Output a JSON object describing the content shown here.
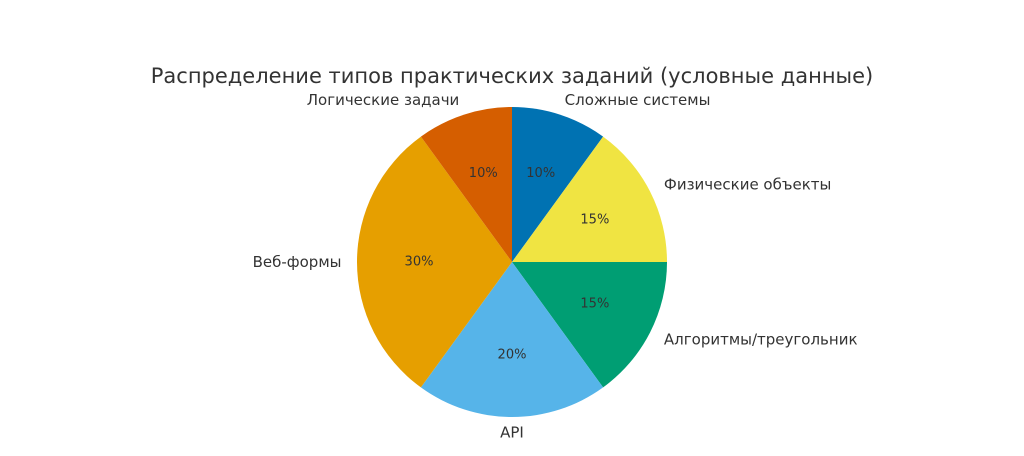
{
  "chart_data": {
    "type": "pie",
    "title": "Распределение типов практических заданий (условные данные)",
    "start_angle_deg": 90,
    "direction": "clockwise",
    "slices": [
      {
        "label": "Сложные системы",
        "value": 10,
        "pct_label": "10%",
        "color": "#0072B2"
      },
      {
        "label": "Физические объекты",
        "value": 15,
        "pct_label": "15%",
        "color": "#F0E442"
      },
      {
        "label": "Алгоритмы/треугольник",
        "value": 15,
        "pct_label": "15%",
        "color": "#009E73"
      },
      {
        "label": "API",
        "value": 20,
        "pct_label": "20%",
        "color": "#56B4E9"
      },
      {
        "label": "Веб-формы",
        "value": 30,
        "pct_label": "30%",
        "color": "#E69F00"
      },
      {
        "label": "Логические задачи",
        "value": 10,
        "pct_label": "10%",
        "color": "#D55E00"
      }
    ]
  }
}
